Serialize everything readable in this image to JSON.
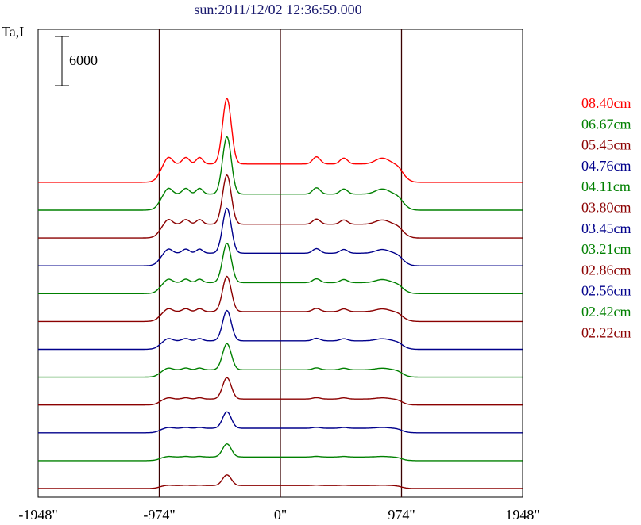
{
  "chart_data": {
    "type": "line",
    "title": "sun:2011/12/02 12:36:59.000",
    "ylabel": "Ta,I",
    "scale_bar_label": "6000",
    "x_ticks": [
      "-1948\"",
      "-974\"",
      "0\"",
      "974\"",
      "1948\""
    ],
    "x_tick_values": [
      -1948,
      -974,
      0,
      974,
      1948
    ],
    "xlim": [
      -1948,
      1948
    ],
    "vertical_lines": [
      -974,
      0,
      974
    ],
    "series": [
      {
        "name": "08.40cm",
        "color": "#ff0000",
        "peak": 8000,
        "limbbright": 1.0
      },
      {
        "name": "06.67cm",
        "color": "#008000",
        "peak": 7000,
        "limbbright": 1.0
      },
      {
        "name": "05.45cm",
        "color": "#8b0000",
        "peak": 6000,
        "limbbright": 0.95
      },
      {
        "name": "04.76cm",
        "color": "#00008b",
        "peak": 5500,
        "limbbright": 0.9
      },
      {
        "name": "04.11cm",
        "color": "#008000",
        "peak": 4800,
        "limbbright": 0.85
      },
      {
        "name": "03.80cm",
        "color": "#8b0000",
        "peak": 4300,
        "limbbright": 0.8
      },
      {
        "name": "03.45cm",
        "color": "#00008b",
        "peak": 3700,
        "limbbright": 0.7
      },
      {
        "name": "03.21cm",
        "color": "#008000",
        "peak": 3200,
        "limbbright": 0.6
      },
      {
        "name": "02.86cm",
        "color": "#8b0000",
        "peak": 2600,
        "limbbright": 0.5
      },
      {
        "name": "02.56cm",
        "color": "#00008b",
        "peak": 2000,
        "limbbright": 0.4
      },
      {
        "name": "02.42cm",
        "color": "#008000",
        "peak": 1600,
        "limbbright": 0.3
      },
      {
        "name": "02.22cm",
        "color": "#8b0000",
        "peak": 1300,
        "limbbright": 0.2
      }
    ]
  }
}
